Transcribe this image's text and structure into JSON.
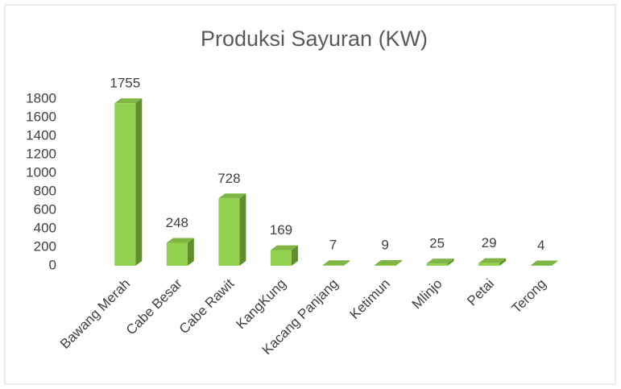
{
  "chart_data": {
    "type": "bar3d",
    "title": "Produksi Sayuran (KW)",
    "categories": [
      "Bawang Merah",
      "Cabe Besar",
      "Cabe Rawit",
      "KangKung",
      "Kacang Panjang",
      "Ketimun",
      "Mlinjo",
      "Petai",
      "Terong"
    ],
    "values": [
      1755,
      248,
      728,
      169,
      7,
      9,
      25,
      29,
      4
    ],
    "color": "#92d050",
    "ylim": [
      0,
      1800
    ],
    "yticks": [
      0,
      200,
      400,
      600,
      800,
      1000,
      1200,
      1400,
      1600,
      1800
    ],
    "grid": false
  }
}
